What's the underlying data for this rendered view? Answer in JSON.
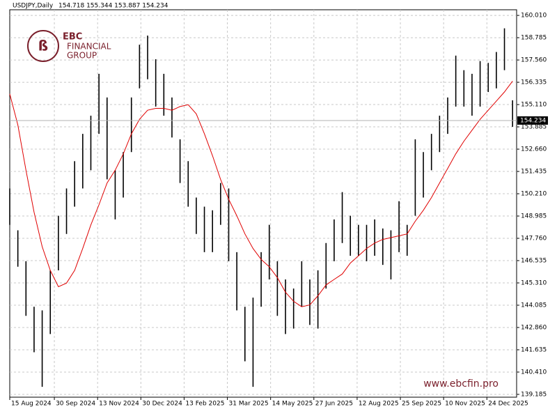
{
  "chart_data": {
    "type": "ohlc",
    "symbol": "USDJPY,Daily",
    "quote": "154.718 155.344 153.887 154.234",
    "logo": {
      "mark": "EBC",
      "line1": "FINANCIAL",
      "line2": "GROUP"
    },
    "watermark": "www.ebcfin.pro",
    "bar_color": "#000000",
    "grid": true,
    "x": [
      0,
      6,
      12,
      18,
      24,
      30,
      36,
      42,
      48,
      54,
      60,
      66,
      72,
      78,
      84,
      90,
      96,
      102,
      108,
      114,
      120,
      126,
      132,
      138,
      144,
      150,
      156,
      162,
      168,
      174,
      180,
      186,
      192,
      198,
      204,
      210,
      216,
      222,
      228,
      234,
      240,
      246,
      252,
      258,
      264,
      270,
      276,
      282,
      288,
      294,
      300,
      306,
      312,
      318,
      324,
      330,
      336,
      342,
      348,
      354,
      360,
      366,
      372
    ],
    "bars": {
      "high": [
        150.5,
        148.2,
        146.5,
        144.0,
        143.8,
        146.0,
        149.0,
        150.5,
        152.0,
        153.5,
        154.5,
        156.8,
        155.5,
        151.5,
        152.5,
        155.5,
        158.4,
        158.9,
        157.6,
        156.8,
        155.5,
        153.2,
        152.0,
        150.0,
        149.5,
        149.3,
        150.8,
        150.5,
        147.0,
        144.0,
        144.5,
        147.0,
        148.5,
        146.5,
        145.5,
        145.0,
        146.5,
        145.5,
        146.0,
        147.5,
        148.8,
        150.3,
        149.0,
        148.5,
        148.5,
        148.8,
        148.3,
        148.2,
        149.8,
        148.5,
        153.2,
        152.5,
        153.5,
        154.5,
        155.5,
        157.8,
        157.0,
        156.8,
        157.5,
        157.4,
        158.0,
        159.3,
        155.344
      ],
      "low": [
        148.5,
        146.2,
        143.5,
        141.5,
        139.6,
        142.5,
        146.0,
        148.0,
        149.5,
        150.5,
        151.5,
        153.5,
        151.0,
        148.8,
        150.0,
        152.5,
        156.0,
        156.5,
        155.0,
        154.5,
        153.3,
        150.8,
        149.5,
        148.0,
        147.0,
        147.0,
        148.5,
        146.5,
        143.8,
        141.0,
        139.6,
        144.0,
        145.5,
        143.5,
        142.5,
        142.8,
        144.0,
        143.0,
        142.8,
        145.0,
        146.5,
        147.5,
        146.8,
        146.8,
        146.5,
        146.8,
        146.3,
        145.5,
        147.0,
        146.8,
        149.0,
        150.0,
        151.5,
        152.5,
        153.5,
        155.0,
        155.0,
        154.5,
        155.0,
        155.8,
        156.0,
        157.0,
        153.887
      ]
    },
    "ma": {
      "color": "#e00000",
      "values": [
        155.7,
        154.0,
        151.5,
        149.2,
        147.3,
        146.0,
        145.1,
        145.3,
        146.0,
        147.2,
        148.5,
        149.6,
        150.8,
        151.5,
        152.4,
        153.5,
        154.3,
        154.8,
        154.9,
        154.9,
        154.8,
        155.0,
        155.1,
        154.6,
        153.5,
        152.3,
        151.0,
        149.9,
        149.0,
        148.0,
        147.2,
        146.6,
        146.2,
        145.6,
        144.8,
        144.3,
        144.0,
        144.1,
        144.6,
        145.2,
        145.5,
        145.8,
        146.4,
        146.8,
        147.2,
        147.5,
        147.7,
        147.8,
        147.9,
        148.0,
        148.7,
        149.3,
        150.0,
        150.8,
        151.6,
        152.4,
        153.1,
        153.7,
        154.3,
        154.8,
        155.3,
        155.8,
        156.4
      ]
    },
    "last_price": 154.234,
    "xlim": [
      0,
      375
    ],
    "xticks": [
      {
        "value": 0,
        "label": "15 Aug 2024"
      },
      {
        "value": 33,
        "label": "30 Sep 2024"
      },
      {
        "value": 65,
        "label": "13 Nov 2024"
      },
      {
        "value": 97,
        "label": "30 Dec 2024"
      },
      {
        "value": 129,
        "label": "13 Feb 2025"
      },
      {
        "value": 161,
        "label": "31 Mar 2025"
      },
      {
        "value": 193,
        "label": "14 May 2025"
      },
      {
        "value": 225,
        "label": "27 Jun 2025"
      },
      {
        "value": 257,
        "label": "12 Aug 2025"
      },
      {
        "value": 289,
        "label": "25 Sep 2025"
      },
      {
        "value": 321,
        "label": "10 Nov 2025"
      },
      {
        "value": 353,
        "label": "24 Dec 2025"
      }
    ],
    "ylim": [
      139.03,
      160.32
    ],
    "yticks": [
      {
        "value": 160.01,
        "label": "160.010"
      },
      158.785,
      {
        "value": 157.56,
        "label": "157.560"
      },
      156.335,
      {
        "value": 155.11,
        "label": "155.110"
      },
      153.885,
      {
        "value": 152.66,
        "label": "152.660"
      },
      151.435,
      {
        "value": 150.21,
        "label": "150.210"
      },
      148.985,
      {
        "value": 147.76,
        "label": "147.760"
      },
      146.535,
      {
        "value": 145.31,
        "label": "145.310"
      },
      144.085,
      {
        "value": 142.86,
        "label": "142.860"
      },
      141.635,
      {
        "value": 140.41,
        "label": "140.410"
      },
      139.185
    ]
  }
}
